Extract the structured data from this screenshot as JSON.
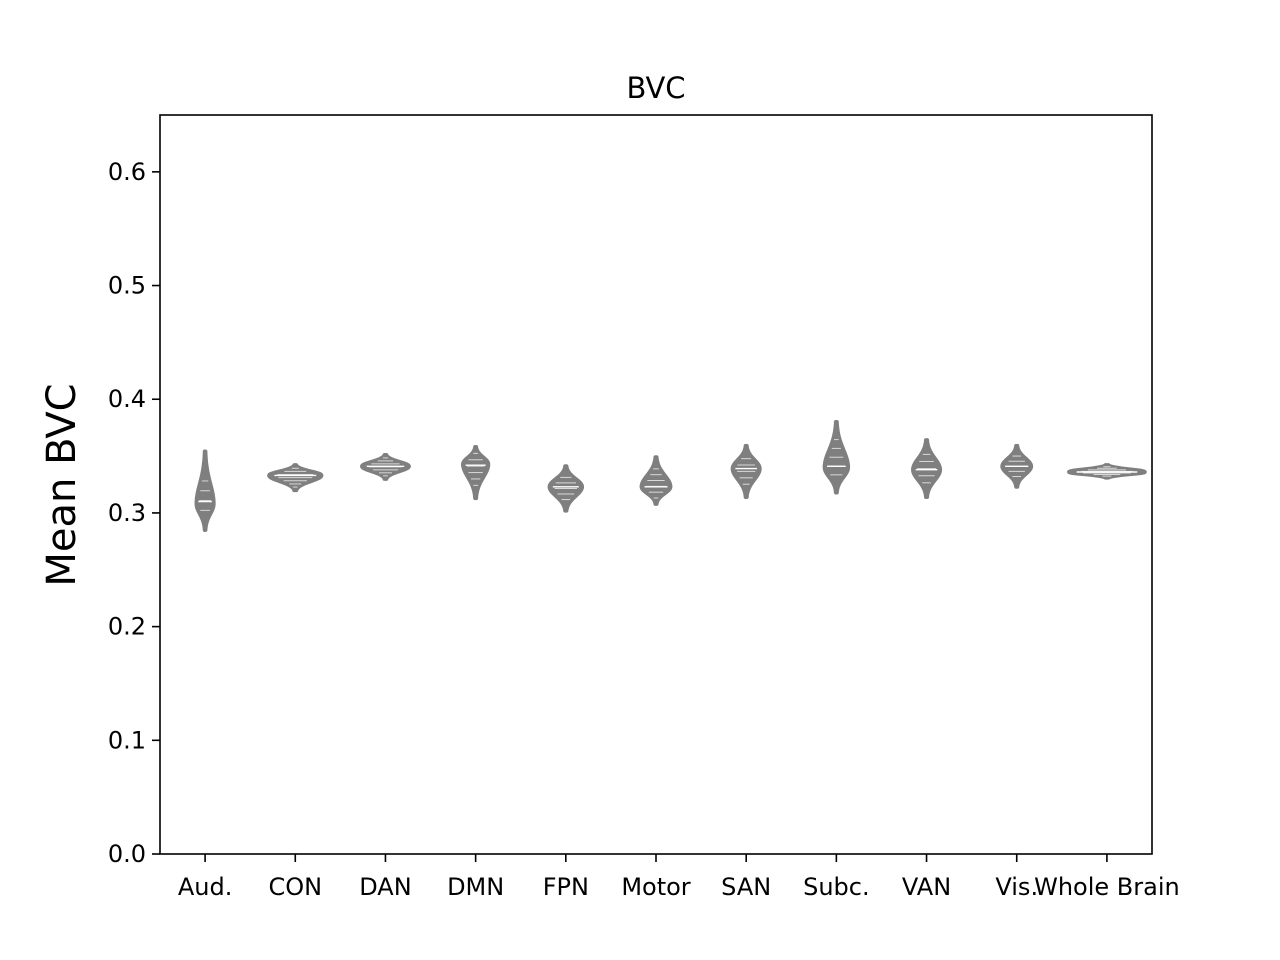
{
  "chart_data": {
    "type": "violin",
    "title": "BVC",
    "xlabel": "",
    "ylabel": "Mean BVC",
    "ylim": [
      0.0,
      0.65
    ],
    "yticks": [
      0.0,
      0.1,
      0.2,
      0.3,
      0.4,
      0.5,
      0.6
    ],
    "ytick_labels": [
      "0.0",
      "0.1",
      "0.2",
      "0.3",
      "0.4",
      "0.5",
      "0.6"
    ],
    "grid": false,
    "color": "#7f7f7f",
    "categories": [
      "Aud.",
      "CON",
      "DAN",
      "DMN",
      "FPN",
      "Motor",
      "SAN",
      "Subc.",
      "VAN",
      "Vis.",
      "Whole Brain"
    ],
    "distributions": [
      {
        "min": 0.285,
        "max": 0.354,
        "median": 0.31,
        "mode": 0.308,
        "half_width_max": 0.095
      },
      {
        "min": 0.32,
        "max": 0.342,
        "median": 0.333,
        "mode": 0.333,
        "half_width_max": 0.29
      },
      {
        "min": 0.33,
        "max": 0.351,
        "median": 0.341,
        "mode": 0.341,
        "half_width_max": 0.26
      },
      {
        "min": 0.313,
        "max": 0.358,
        "median": 0.342,
        "mode": 0.343,
        "half_width_max": 0.14
      },
      {
        "min": 0.302,
        "max": 0.341,
        "median": 0.323,
        "mode": 0.323,
        "half_width_max": 0.18
      },
      {
        "min": 0.308,
        "max": 0.349,
        "median": 0.323,
        "mode": 0.323,
        "half_width_max": 0.16
      },
      {
        "min": 0.314,
        "max": 0.359,
        "median": 0.339,
        "mode": 0.339,
        "half_width_max": 0.15
      },
      {
        "min": 0.318,
        "max": 0.38,
        "median": 0.341,
        "mode": 0.34,
        "half_width_max": 0.13
      },
      {
        "min": 0.314,
        "max": 0.364,
        "median": 0.338,
        "mode": 0.338,
        "half_width_max": 0.15
      },
      {
        "min": 0.323,
        "max": 0.359,
        "median": 0.341,
        "mode": 0.341,
        "half_width_max": 0.16
      },
      {
        "min": 0.331,
        "max": 0.342,
        "median": 0.336,
        "mode": 0.336,
        "half_width_max": 0.42
      }
    ]
  }
}
